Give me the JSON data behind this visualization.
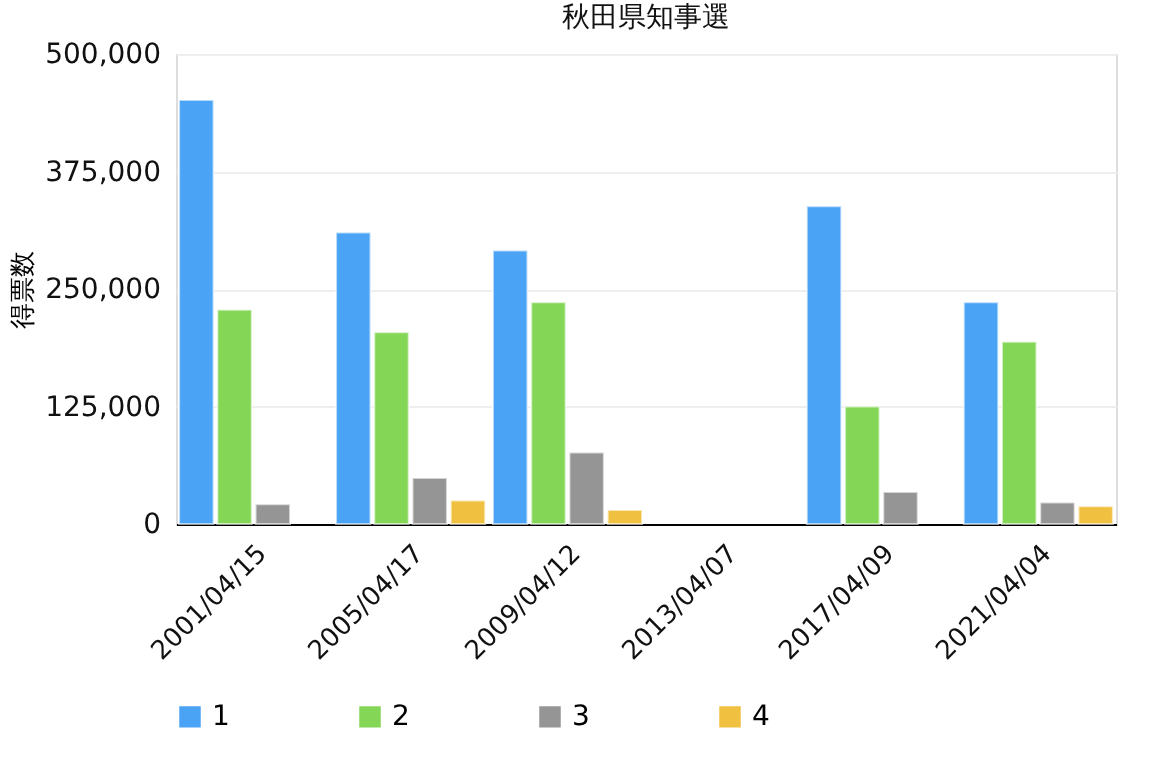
{
  "chart_data": {
    "type": "bar",
    "title": "秋田県知事選",
    "ylabel": "得票数",
    "categories": [
      "2001/04/15",
      "2005/04/17",
      "2009/04/12",
      "2013/04/07",
      "2017/04/09",
      "2021/04/04"
    ],
    "series": [
      {
        "name": "1",
        "color": "#4aa3f5",
        "values": [
          451000,
          310000,
          291000,
          null,
          338000,
          236000
        ]
      },
      {
        "name": "2",
        "color": "#84d657",
        "values": [
          228000,
          204000,
          236000,
          null,
          125000,
          194000
        ]
      },
      {
        "name": "3",
        "color": "#959595",
        "values": [
          21000,
          49000,
          76000,
          null,
          34000,
          23000
        ]
      },
      {
        "name": "4",
        "color": "#f0c040",
        "values": [
          null,
          25000,
          15000,
          null,
          null,
          19000
        ]
      }
    ],
    "ylim": [
      0,
      500000
    ],
    "yticks": [
      {
        "value": 0,
        "label": "0"
      },
      {
        "value": 125000,
        "label": "125,000"
      },
      {
        "value": 250000,
        "label": "250,000"
      },
      {
        "value": 375000,
        "label": "375,000"
      },
      {
        "value": 500000,
        "label": "500,000"
      }
    ],
    "grid": "y",
    "legend": "bottom"
  }
}
